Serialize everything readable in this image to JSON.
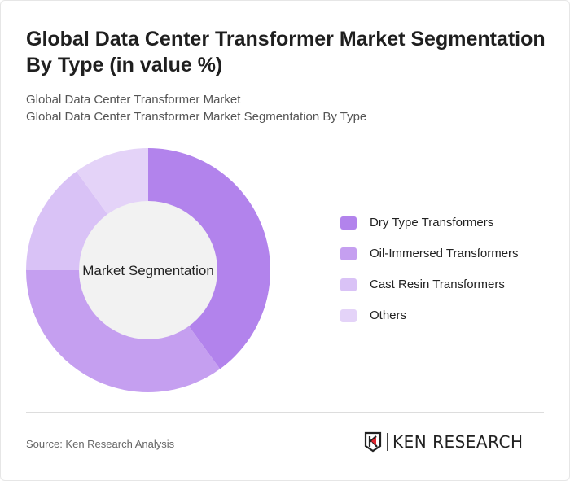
{
  "title": "Global Data Center Transformer Market Segmentation By Type (in value %)",
  "subtitle1": "Global Data Center Transformer Market",
  "subtitle2": "Global Data Center Transformer Market Segmentation By Type",
  "chart_data": {
    "type": "pie",
    "variant": "donut",
    "center_label": "Market Segmentation",
    "categories": [
      "Dry Type Transformers",
      "Oil-Immersed Transformers",
      "Cast Resin Transformers",
      "Others"
    ],
    "values": [
      40,
      35,
      15,
      10
    ],
    "colors": [
      "#b283ec",
      "#c59ff0",
      "#d9c2f6",
      "#e4d3f8"
    ],
    "legend_position": "right"
  },
  "source": "Source: Ken Research Analysis",
  "logo_text": "KEN RESEARCH"
}
